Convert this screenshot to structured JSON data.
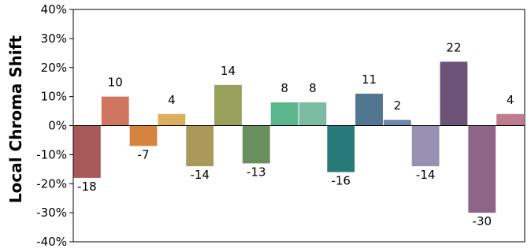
{
  "chart_data": {
    "type": "bar",
    "title": "",
    "xlabel": "",
    "ylabel": "Local Chroma Shift",
    "ylim": [
      -40,
      40
    ],
    "yticks": [
      -40,
      -30,
      -20,
      -10,
      0,
      10,
      20,
      30,
      40
    ],
    "ytick_suffix": "%",
    "grid": false,
    "legend": "none",
    "values": [
      -18,
      10,
      -7,
      4,
      -14,
      14,
      -13,
      8,
      8,
      -16,
      11,
      2,
      -14,
      22,
      -30,
      4
    ],
    "data_labels": [
      "-18",
      "10",
      "-7",
      "4",
      "-14",
      "14",
      "-13",
      "8",
      "8",
      "-16",
      "11",
      "2",
      "-14",
      "22",
      "-30",
      "4"
    ],
    "colors": [
      "#a85a5a",
      "#cf7560",
      "#d4843e",
      "#dcae5e",
      "#a9995a",
      "#97a15c",
      "#6a8f5e",
      "#5cb68c",
      "#7bbba4",
      "#287a78",
      "#50778f",
      "#6d87aa",
      "#9891b3",
      "#6c5478",
      "#8f6587",
      "#c07a8f"
    ]
  }
}
